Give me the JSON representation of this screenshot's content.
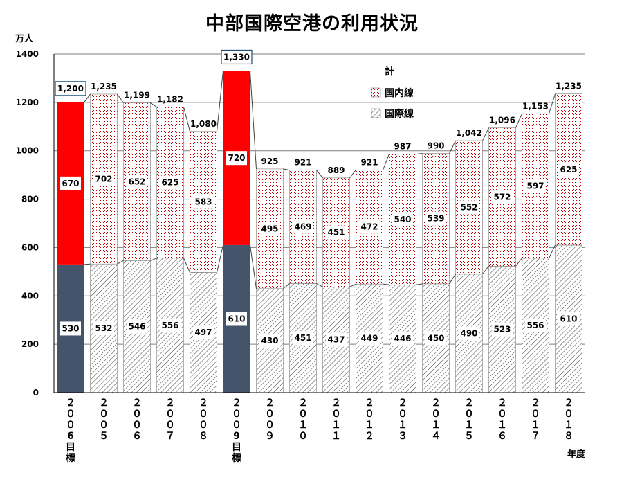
{
  "chart_data": {
    "type": "bar",
    "stacked": true,
    "title": "中部国際空港の利用状況",
    "ylabel": "万人",
    "xlabel": "年度",
    "ylim": [
      0,
      1400
    ],
    "yticks": [
      0,
      200,
      400,
      600,
      800,
      1000,
      1200,
      1400
    ],
    "grid": true,
    "legend_position": "top-right",
    "legend_title": "計",
    "categories": [
      "２００６目標",
      "２００５",
      "２００６",
      "２００７",
      "２００８",
      "２００９目標",
      "２００９",
      "２０１０",
      "２０１１",
      "２０１２",
      "２０１３",
      "２０１４",
      "２０１５",
      "２０１６",
      "２０１７",
      "２０１８"
    ],
    "category_lines": [
      [
        "２",
        "０",
        "０",
        "6",
        "目",
        "標"
      ],
      [
        "２",
        "０",
        "０",
        "５"
      ],
      [
        "２",
        "０",
        "０",
        "６"
      ],
      [
        "２",
        "０",
        "０",
        "７"
      ],
      [
        "２",
        "０",
        "０",
        "８"
      ],
      [
        "２",
        "０",
        "０",
        "9",
        "目",
        "標"
      ],
      [
        "２",
        "０",
        "０",
        "９"
      ],
      [
        "２",
        "０",
        "１",
        "０"
      ],
      [
        "２",
        "０",
        "１",
        "１"
      ],
      [
        "２",
        "０",
        "１",
        "２"
      ],
      [
        "２",
        "０",
        "１",
        "３"
      ],
      [
        "２",
        "０",
        "１",
        "４"
      ],
      [
        "２",
        "０",
        "１",
        "５"
      ],
      [
        "２",
        "０",
        "１",
        "６"
      ],
      [
        "２",
        "０",
        "１",
        "７"
      ],
      [
        "２",
        "０",
        "１",
        "８"
      ]
    ],
    "target_indices": [
      0,
      5
    ],
    "series": [
      {
        "name": "国際線",
        "values": [
          530,
          532,
          546,
          556,
          497,
          610,
          430,
          451,
          437,
          449,
          446,
          450,
          490,
          523,
          556,
          610
        ]
      },
      {
        "name": "国内線",
        "values": [
          670,
          702,
          652,
          625,
          583,
          720,
          495,
          469,
          451,
          472,
          540,
          539,
          552,
          572,
          597,
          625
        ]
      }
    ],
    "totals": [
      1200,
      1235,
      1199,
      1182,
      1080,
      1330,
      925,
      921,
      889,
      921,
      987,
      990,
      1042,
      1096,
      1153,
      1235
    ],
    "total_labels": [
      "1,200",
      "1,235",
      "1,199",
      "1,182",
      "1,080",
      "1,330",
      "925",
      "921",
      "889",
      "921",
      "987",
      "990",
      "1,042",
      "1,096",
      "1,153",
      "1,235"
    ],
    "colors": {
      "target_international": "#44546a",
      "target_domestic": "#ff0000",
      "pattern_dots": "#c00000",
      "pattern_hatch": "#404040",
      "axis": "#000000",
      "grid": "#7f7f7f",
      "target_label_border": "#1f4e79"
    }
  }
}
